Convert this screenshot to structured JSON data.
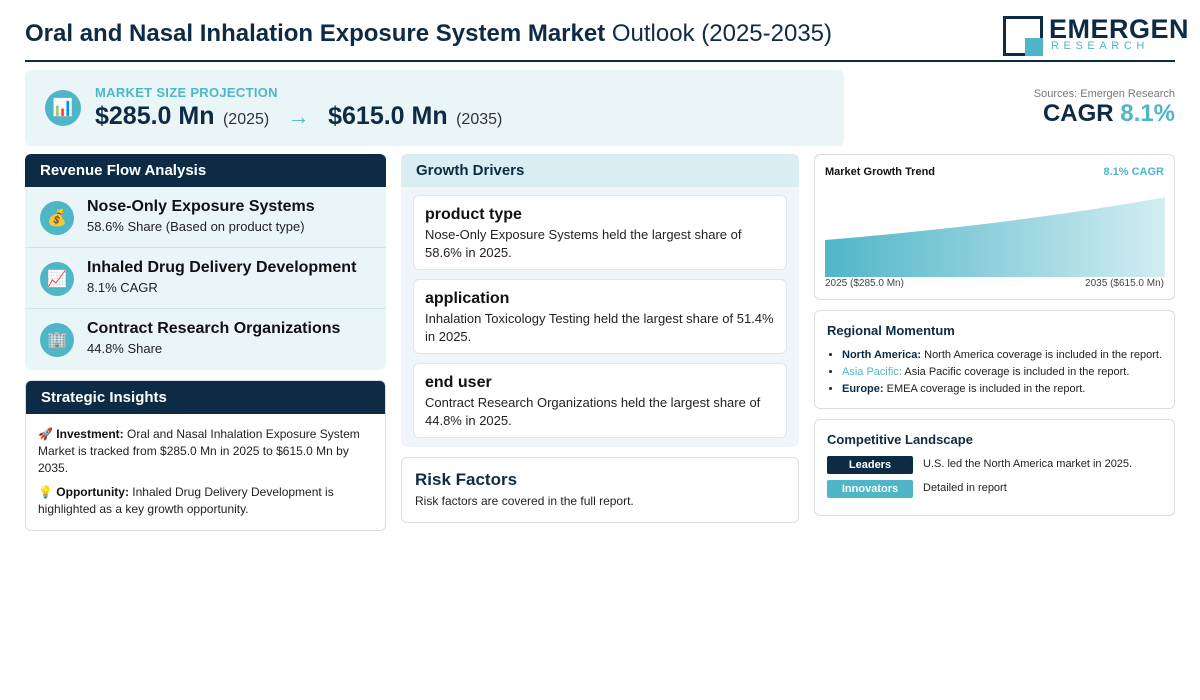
{
  "header": {
    "title_bold": "Oral and Nasal Inhalation Exposure System Market",
    "title_rest": " Outlook (2025-2035)",
    "logo_main": "EMERGEN",
    "logo_sub": "RESEARCH"
  },
  "projection": {
    "label": "MARKET SIZE PROJECTION",
    "start_value": "$285.0 Mn",
    "start_year": "(2025)",
    "arrow": "→",
    "end_value": "$615.0 Mn",
    "end_year": "(2035)"
  },
  "cagr_block": {
    "sources": "Sources: Emergen Research",
    "cagr_label": "CAGR ",
    "cagr_value": "8.1%"
  },
  "revenue_flow": {
    "title": "Revenue Flow Analysis",
    "items": [
      {
        "icon": "💰",
        "title": "Nose-Only Exposure Systems",
        "sub": "58.6% Share (Based on product type)"
      },
      {
        "icon": "📈",
        "title": "Inhaled Drug Delivery Development",
        "sub": "8.1% CAGR"
      },
      {
        "icon": "🏢",
        "title": "Contract Research Organizations",
        "sub": "44.8% Share"
      }
    ]
  },
  "strategic": {
    "title": "Strategic Insights",
    "investment_icon": "🚀",
    "investment_label": "Investment:",
    "investment_text": " Oral and Nasal Inhalation Exposure System Market is tracked from $285.0 Mn in 2025 to $615.0 Mn by 2035.",
    "opportunity_icon": "💡",
    "opportunity_label": "Opportunity:",
    "opportunity_text": " Inhaled Drug Delivery Development is highlighted as a key growth opportunity."
  },
  "drivers": {
    "title": "Growth Drivers",
    "items": [
      {
        "title": "product type",
        "text": "Nose-Only Exposure Systems held the largest share of 58.6% in 2025."
      },
      {
        "title": "application",
        "text": "Inhalation Toxicology Testing held the largest share of 51.4% in 2025."
      },
      {
        "title": "end user",
        "text": "Contract Research Organizations held the largest share of 44.8% in 2025."
      }
    ]
  },
  "risk": {
    "title": "Risk Factors",
    "text": "Risk factors are covered in the full report."
  },
  "trend": {
    "title": "Market Growth Trend",
    "cagr": "8.1% CAGR",
    "x_start": "2025 ($285.0 Mn)",
    "x_end": "2035 ($615.0 Mn)"
  },
  "chart_data": {
    "type": "area",
    "title": "Market Growth Trend",
    "x": [
      2025,
      2035
    ],
    "values": [
      285.0,
      615.0
    ],
    "unit": "$ Mn",
    "cagr": "8.1%",
    "color": "#4fb6c8"
  },
  "region": {
    "title": "Regional Momentum",
    "items": [
      {
        "name": "North America:",
        "text": " North America coverage is included in the report."
      },
      {
        "name": "Asia Pacific:",
        "text": " Asia Pacific coverage is included in the report."
      },
      {
        "name": "Europe:",
        "text": " EMEA coverage is included in the report."
      }
    ]
  },
  "competitive": {
    "title": "Competitive Landscape",
    "rows": [
      {
        "badge": "Leaders",
        "color": "#0d2b45",
        "text": "U.S. led the North America market in 2025."
      },
      {
        "badge": "Innovators",
        "color": "#4fb6c8",
        "text": "Detailed in report"
      }
    ]
  }
}
